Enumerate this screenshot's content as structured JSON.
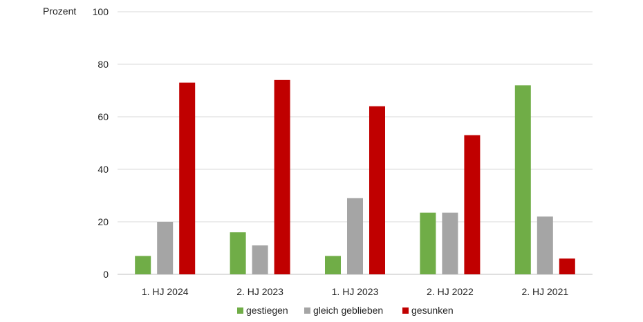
{
  "chart_data": {
    "type": "bar",
    "ylabel": "Prozent",
    "xlabel": "",
    "title": "",
    "ylim": [
      0,
      100
    ],
    "yticks": [
      0,
      20,
      40,
      60,
      80,
      100
    ],
    "grid": true,
    "legend_position": "bottom",
    "categories": [
      "1. HJ 2024",
      "2. HJ 2023",
      "1. HJ 2023",
      "2. HJ 2022",
      "2. HJ 2021"
    ],
    "series": [
      {
        "name": "gestiegen",
        "color": "#70ad47",
        "values": [
          7,
          16,
          7,
          23.5,
          72
        ]
      },
      {
        "name": "gleich geblieben",
        "color": "#a5a5a5",
        "values": [
          20,
          11,
          29,
          23.5,
          22
        ]
      },
      {
        "name": "gesunken",
        "color": "#c00000",
        "values": [
          73,
          74,
          64,
          53,
          6
        ]
      }
    ]
  }
}
